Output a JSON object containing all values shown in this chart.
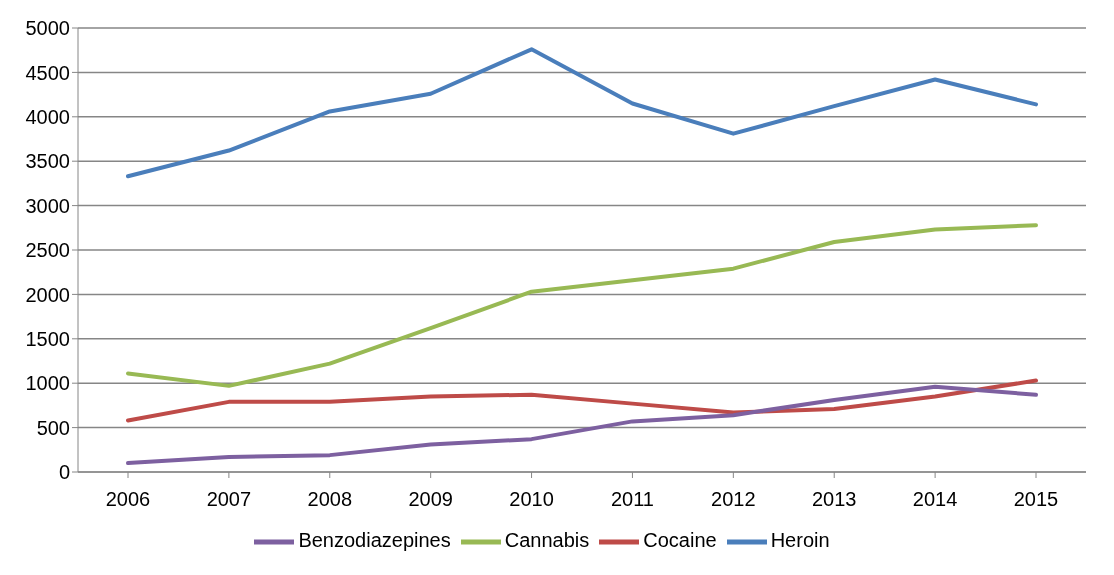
{
  "chart_data": {
    "type": "line",
    "categories": [
      "2006",
      "2007",
      "2008",
      "2009",
      "2010",
      "2011",
      "2012",
      "2013",
      "2014",
      "2015"
    ],
    "series": [
      {
        "name": "Heroin",
        "color": "#4a7ebb",
        "values": [
          3330,
          3620,
          4060,
          4260,
          4760,
          4150,
          3810,
          4120,
          4420,
          4140
        ]
      },
      {
        "name": "Cocaine",
        "color": "#be4b48",
        "values": [
          580,
          790,
          790,
          850,
          870,
          770,
          670,
          710,
          850,
          1030
        ]
      },
      {
        "name": "Cannabis",
        "color": "#98b954",
        "values": [
          1110,
          970,
          1220,
          1620,
          2030,
          2160,
          2290,
          2590,
          2730,
          2780
        ]
      },
      {
        "name": "Benzodiazepines",
        "color": "#7d60a0",
        "values": [
          100,
          170,
          190,
          310,
          370,
          570,
          640,
          810,
          960,
          870
        ]
      }
    ],
    "ylim": [
      0,
      5000
    ],
    "yticks": [
      0,
      500,
      1000,
      1500,
      2000,
      2500,
      3000,
      3500,
      4000,
      4500,
      5000
    ],
    "grid": "y",
    "legend": "bottom",
    "marker": "none",
    "line_style": "solid"
  }
}
